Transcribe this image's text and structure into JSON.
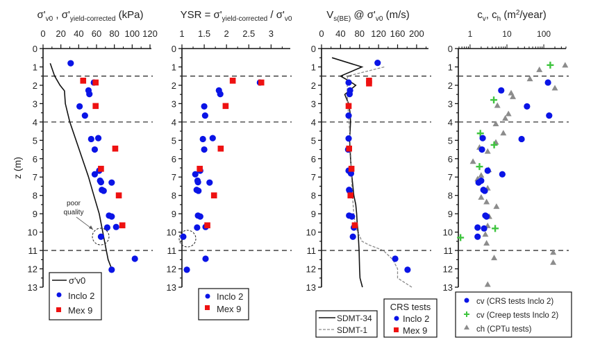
{
  "y_axis": {
    "label": "z (m)",
    "range": [
      0,
      13
    ],
    "ticks": [
      "0",
      "1",
      "2",
      "3",
      "4",
      "5",
      "6",
      "7",
      "8",
      "9",
      "10",
      "11",
      "12",
      "13"
    ]
  },
  "layer_boundaries_z": [
    1.5,
    4.0,
    11.0
  ],
  "colors": {
    "inclo2": "#0a14e6",
    "mex9": "#ee1111",
    "creep": "#3ec43e",
    "cptu": "#8c8c8c",
    "line": "#111111",
    "dashed_line": "#8a8a8a"
  },
  "chart_data": [
    {
      "type": "scatter",
      "id": "stress",
      "title_parts": {
        "main1": "σ'",
        "sub1": "v0",
        "sep": " , σ'",
        "sub2": "yield-corrected",
        "unit": " (kPa)"
      },
      "xlabel": "σ'v0 , σ'yield-corrected (kPa)",
      "ylabel": "z (m)",
      "xlim": [
        0,
        120
      ],
      "ylim": [
        0,
        13
      ],
      "x_ticks": [
        "0",
        "20",
        "40",
        "60",
        "80",
        "100",
        "120"
      ],
      "annotation": {
        "text_line1": "poor",
        "text_line2": "quality",
        "target": [
          65,
          10.3
        ]
      },
      "series": [
        {
          "name": "σ'v0",
          "kind": "line",
          "points": [
            [
              8,
              0.8
            ],
            [
              13,
              1.5
            ],
            [
              19,
              2.0
            ],
            [
              24,
              2.3
            ],
            [
              25,
              3.0
            ],
            [
              30,
              4.0
            ],
            [
              37,
              5.0
            ],
            [
              44,
              6.0
            ],
            [
              51,
              7.0
            ],
            [
              57,
              8.0
            ],
            [
              63,
              9.0
            ],
            [
              67,
              10.0
            ],
            [
              71,
              11.0
            ],
            [
              73,
              11.5
            ],
            [
              77,
              12.0
            ]
          ]
        },
        {
          "name": "Inclo 2",
          "kind": "circle",
          "points": [
            [
              31,
              0.8
            ],
            [
              57,
              1.85
            ],
            [
              51,
              2.28
            ],
            [
              52,
              2.48
            ],
            [
              41,
              3.15
            ],
            [
              47,
              3.65
            ],
            [
              54,
              4.93
            ],
            [
              62,
              4.88
            ],
            [
              58,
              5.5
            ],
            [
              63,
              6.65
            ],
            [
              58,
              6.85
            ],
            [
              64,
              7.2
            ],
            [
              65,
              7.28
            ],
            [
              77,
              7.3
            ],
            [
              66,
              7.7
            ],
            [
              68,
              7.75
            ],
            [
              74,
              9.1
            ],
            [
              77,
              9.15
            ],
            [
              72,
              9.75
            ],
            [
              82,
              9.72
            ],
            [
              65,
              10.25
            ],
            [
              103,
              11.45
            ],
            [
              77,
              12.05
            ]
          ]
        },
        {
          "name": "Mex 9",
          "kind": "square",
          "points": [
            [
              45,
              1.75
            ],
            [
              59,
              1.85
            ],
            [
              59,
              3.13
            ],
            [
              81,
              5.45
            ],
            [
              65,
              6.55
            ],
            [
              85,
              8.0
            ],
            [
              89,
              9.63
            ]
          ]
        }
      ],
      "legend": {
        "position": "bottom-left",
        "entries": [
          "σ'v0",
          "Inclo 2",
          "Mex 9"
        ]
      }
    },
    {
      "type": "scatter",
      "id": "ysr",
      "title_parts": {
        "lead": "YSR = σ'",
        "sub1": "yield-corrected",
        "mid": " / σ'",
        "sub2": "v0"
      },
      "xlabel": "YSR = σ'yield-corrected / σ'v0",
      "xlim": [
        1,
        3.4
      ],
      "ylim": [
        0,
        13
      ],
      "x_ticks": [
        "1",
        "1.5",
        "2",
        "2.5",
        "3"
      ],
      "series": [
        {
          "name": "Inclo 2",
          "kind": "circle",
          "points": [
            [
              2.75,
              1.85
            ],
            [
              1.83,
              2.28
            ],
            [
              1.86,
              2.48
            ],
            [
              1.5,
              3.15
            ],
            [
              1.52,
              3.65
            ],
            [
              1.47,
              4.93
            ],
            [
              1.69,
              4.88
            ],
            [
              1.5,
              5.5
            ],
            [
              1.41,
              6.65
            ],
            [
              1.3,
              6.85
            ],
            [
              1.35,
              7.2
            ],
            [
              1.36,
              7.28
            ],
            [
              1.62,
              7.3
            ],
            [
              1.33,
              7.7
            ],
            [
              1.37,
              7.75
            ],
            [
              1.36,
              9.1
            ],
            [
              1.41,
              9.15
            ],
            [
              1.34,
              9.75
            ],
            [
              1.53,
              9.72
            ],
            [
              1.03,
              10.25
            ],
            [
              1.53,
              11.45
            ],
            [
              1.11,
              12.05
            ]
          ]
        },
        {
          "name": "Mex 9",
          "kind": "square",
          "points": [
            [
              2.14,
              1.75
            ],
            [
              2.78,
              1.85
            ],
            [
              1.98,
              3.13
            ],
            [
              1.87,
              5.45
            ],
            [
              1.4,
              6.55
            ],
            [
              1.72,
              8.0
            ],
            [
              1.57,
              9.63
            ]
          ]
        }
      ],
      "legend": {
        "position": "bottom-left",
        "entries": [
          "Inclo 2",
          "Mex 9"
        ]
      }
    },
    {
      "type": "line",
      "id": "vs",
      "title_parts": {
        "lead": "V",
        "sub1": "s(BE)",
        "mid": " @ σ'",
        "sub2": "v0",
        "unit": " (m/s)"
      },
      "xlabel": "Vs(BE) @ σ'v0 (m/s)",
      "xlim": [
        0,
        225
      ],
      "ylim": [
        0,
        13
      ],
      "x_ticks": [
        "0",
        "40",
        "80",
        "120",
        "160",
        "200"
      ],
      "series": [
        {
          "name": "SDMT-34",
          "kind": "line",
          "points": [
            [
              22,
              0.5
            ],
            [
              85,
              1.0
            ],
            [
              40,
              1.5
            ],
            [
              60,
              1.8
            ],
            [
              72,
              2.0
            ],
            [
              49,
              2.5
            ],
            [
              57,
              3.0
            ],
            [
              60,
              3.5
            ],
            [
              61,
              4.0
            ],
            [
              59,
              5.0
            ],
            [
              61,
              6.0
            ],
            [
              64,
              7.0
            ],
            [
              68,
              8.0
            ],
            [
              72,
              8.5
            ],
            [
              74,
              9.0
            ],
            [
              75,
              9.5
            ],
            [
              77,
              10.0
            ],
            [
              78,
              10.5
            ],
            [
              79,
              11.0
            ],
            [
              80,
              12.0
            ],
            [
              81,
              12.5
            ],
            [
              86,
              13.0
            ]
          ]
        },
        {
          "name": "SDMT-1",
          "kind": "dashed",
          "points": [
            [
              132,
              1.0
            ],
            [
              55,
              1.5
            ],
            [
              54,
              2.0
            ],
            [
              55,
              3.0
            ],
            [
              58,
              4.0
            ],
            [
              60,
              5.0
            ],
            [
              62,
              6.0
            ],
            [
              63,
              7.0
            ],
            [
              65,
              8.0
            ],
            [
              68,
              9.0
            ],
            [
              72,
              9.75
            ],
            [
              85,
              10.5
            ],
            [
              100,
              10.7
            ],
            [
              130,
              11.0
            ],
            [
              150,
              11.5
            ],
            [
              160,
              12.0
            ],
            [
              160,
              12.5
            ],
            [
              190,
              13.0
            ]
          ]
        },
        {
          "name": "Inclo 2",
          "kind": "circle",
          "points": [
            [
              118,
              0.78
            ],
            [
              57,
              1.85
            ],
            [
              60,
              2.28
            ],
            [
              59,
              2.48
            ],
            [
              57,
              3.65
            ],
            [
              57,
              4.9
            ],
            [
              56,
              5.5
            ],
            [
              57,
              6.65
            ],
            [
              62,
              6.8
            ],
            [
              58,
              7.7
            ],
            [
              59,
              7.75
            ],
            [
              58,
              9.1
            ],
            [
              64,
              9.15
            ],
            [
              68,
              9.75
            ],
            [
              66,
              10.25
            ],
            [
              155,
              11.45
            ],
            [
              181,
              12.05
            ]
          ]
        },
        {
          "name": "Mex 9",
          "kind": "square",
          "points": [
            [
              100,
              1.75
            ],
            [
              100,
              1.9
            ],
            [
              57,
              3.13
            ],
            [
              58,
              5.45
            ],
            [
              63,
              6.55
            ],
            [
              61,
              8.0
            ],
            [
              70,
              9.63
            ]
          ]
        }
      ],
      "legend": {
        "position": "bottom",
        "left_entries": [
          "SDMT-34",
          "SDMT-1"
        ],
        "right_title": "CRS tests",
        "right_entries": [
          "Inclo 2",
          "Mex 9"
        ]
      }
    },
    {
      "type": "scatter",
      "id": "cv",
      "title_parts": {
        "lead": "c",
        "sub1": "v",
        "mid": ", c",
        "sub2": "h",
        "unit_a": " (m",
        "sup": "2",
        "unit_b": "/year)"
      },
      "xlabel": "cv, ch (m²/year)",
      "xscale": "log",
      "xlim": [
        0.48,
        400
      ],
      "ylim": [
        0,
        13
      ],
      "x_ticks": [
        "1",
        "10",
        "100"
      ],
      "series": [
        {
          "name": "cv (CRS tests Inclo 2)",
          "kind": "circle",
          "points": [
            [
              130,
              1.85
            ],
            [
              7,
              2.28
            ],
            [
              35,
              3.15
            ],
            [
              140,
              3.65
            ],
            [
              2.2,
              4.88
            ],
            [
              25,
              4.93
            ],
            [
              2.1,
              5.5
            ],
            [
              3,
              6.65
            ],
            [
              7.5,
              6.85
            ],
            [
              2,
              7.2
            ],
            [
              1.7,
              7.3
            ],
            [
              2.3,
              7.7
            ],
            [
              2.5,
              7.75
            ],
            [
              2.6,
              9.1
            ],
            [
              2.8,
              9.15
            ],
            [
              1.6,
              9.75
            ],
            [
              2.4,
              9.8
            ],
            [
              1.6,
              10.25
            ]
          ]
        },
        {
          "name": "cv (Creep tests Inclo 2)",
          "kind": "plus",
          "points": [
            [
              150,
              0.9
            ],
            [
              4.4,
              2.8
            ],
            [
              1.9,
              4.62
            ],
            [
              4.5,
              5.25
            ],
            [
              1.8,
              6.43
            ],
            [
              4.8,
              9.8
            ],
            [
              0.55,
              10.3
            ]
          ]
        },
        {
          "name": "ch (CPTu tests)",
          "kind": "triangle",
          "points": [
            [
              380,
              0.9
            ],
            [
              76,
              1.15
            ],
            [
              42,
              1.65
            ],
            [
              200,
              2.15
            ],
            [
              13,
              2.42
            ],
            [
              14.5,
              2.62
            ],
            [
              5.5,
              3.1
            ],
            [
              11,
              3.55
            ],
            [
              9,
              3.8
            ],
            [
              5,
              4.1
            ],
            [
              8,
              4.6
            ],
            [
              5,
              5.1
            ],
            [
              1.8,
              5.38
            ],
            [
              3,
              5.6
            ],
            [
              1.2,
              6.15
            ],
            [
              2,
              6.9
            ],
            [
              3.2,
              6.6
            ],
            [
              1.6,
              7.1
            ],
            [
              3,
              7.6
            ],
            [
              2,
              8.1
            ],
            [
              2.8,
              8.35
            ],
            [
              5.2,
              8.6
            ],
            [
              3.3,
              9.15
            ],
            [
              3,
              9.65
            ],
            [
              2.6,
              10.12
            ],
            [
              2.8,
              10.6
            ],
            [
              4.5,
              11.4
            ],
            [
              180,
              11.1
            ],
            [
              180,
              11.65
            ],
            [
              3,
              12.85
            ]
          ]
        }
      ],
      "legend": {
        "position": "bottom",
        "entries": [
          "cv (CRS tests Inclo 2)",
          "cv (Creep tests Inclo 2)",
          "ch (CPTu tests)"
        ]
      }
    }
  ]
}
